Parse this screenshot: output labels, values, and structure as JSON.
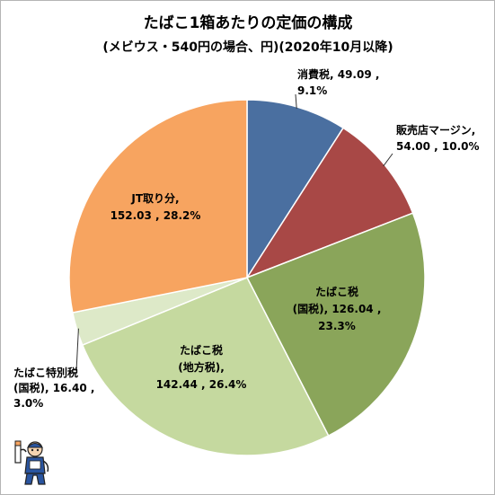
{
  "chart_data": {
    "type": "pie",
    "title": "たばこ1箱あたりの定価の構成",
    "subtitle": "(メビウス・540円の場合、円)(2020年10月以降)",
    "slices": [
      {
        "key": "consumption_tax",
        "category": "消費税",
        "value": 49.09,
        "percent": "9.1%",
        "color": "#4a6fa0",
        "label_lines": [
          "消費税, 49.09 ,",
          "9.1%"
        ]
      },
      {
        "key": "retail_margin",
        "category": "販売店マージン",
        "value": 54.0,
        "percent": "10.0%",
        "color": "#a84846",
        "label_lines": [
          "販売店マージン,",
          "54.00 , 10.0%"
        ]
      },
      {
        "key": "national_tobacco_tax",
        "category": "たばこ税(国税)",
        "value": 126.04,
        "percent": "23.3%",
        "color": "#8aa55a",
        "label_lines": [
          "たばこ税",
          "(国税), 126.04 ,",
          "23.3%"
        ]
      },
      {
        "key": "local_tobacco_tax",
        "category": "たばこ税(地方税)",
        "value": 142.44,
        "percent": "26.4%",
        "color": "#c5d99f",
        "label_lines": [
          "たばこ税",
          "(地方税),",
          "142.44 , 26.4%"
        ]
      },
      {
        "key": "special_tobacco_tax",
        "category": "たばこ特別税(国税)",
        "value": 16.4,
        "percent": "3.0%",
        "color": "#dde9c8",
        "label_lines": [
          "たばこ特別税",
          "(国税), 16.40 ,",
          "3.0%"
        ]
      },
      {
        "key": "jt_share",
        "category": "JT取り分",
        "value": 152.03,
        "percent": "28.2%",
        "color": "#f7a460",
        "label_lines": [
          "JT取り分,",
          "152.03 , 28.2%"
        ]
      }
    ],
    "start_angle": "12 o'clock",
    "direction": "clockwise",
    "legend": "none"
  },
  "mascot": {
    "icon": "mascot-icon",
    "colors": {
      "suit": "#2a55a0",
      "skin": "#f4d3b0",
      "outline": "#222222"
    }
  }
}
